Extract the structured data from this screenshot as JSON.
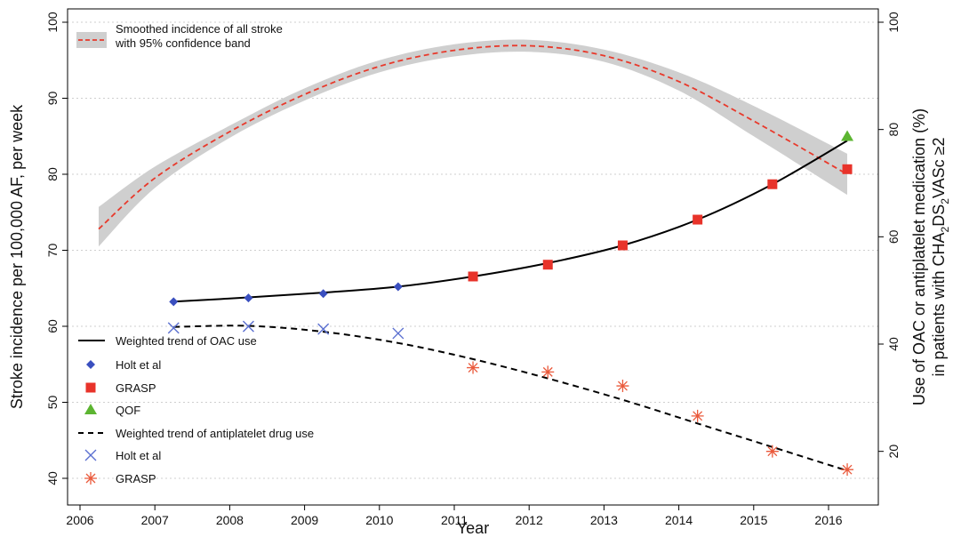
{
  "chart_data": {
    "type": "line",
    "xlabel": "Year",
    "ylabel": "Stroke incidence per 100,000 AF, per week",
    "y2label_line1": "Use of OAC or antiplatelet medication (%)",
    "y2label_line2_parts": [
      "in patients with CHA",
      "2",
      "DS",
      "2",
      "VASc ≥2"
    ],
    "xlim": [
      2006,
      2016.5
    ],
    "ylim": [
      40,
      100
    ],
    "y2lim": [
      10,
      100
    ],
    "xticks": [
      2006,
      2007,
      2008,
      2009,
      2010,
      2011,
      2012,
      2013,
      2014,
      2015,
      2016
    ],
    "yticks": [
      40,
      50,
      60,
      70,
      80,
      90,
      100
    ],
    "y2ticks": [
      20,
      40,
      60,
      80,
      100
    ],
    "grid": "horizontal dotted",
    "series": [
      {
        "name": "Smoothed incidence of all stroke with 95% confidence band",
        "kind": "smoothed-incidence",
        "axis": "left",
        "color": "#e8392b",
        "band_color": "#cfcfcf",
        "x": [
          2006.25,
          2007,
          2008,
          2009,
          2010,
          2011,
          2012,
          2013,
          2014,
          2015,
          2016.25
        ],
        "y": [
          72.8,
          79.5,
          85.6,
          90.5,
          94.2,
          96.3,
          96.9,
          95.6,
          92.2,
          87.0,
          80.0
        ],
        "y_lower": [
          70.5,
          78.2,
          84.8,
          89.7,
          93.4,
          95.5,
          96.1,
          94.8,
          91.0,
          85.0,
          77.3
        ],
        "y_upper": [
          75.7,
          81.0,
          86.4,
          91.3,
          95.0,
          97.1,
          97.7,
          96.4,
          93.4,
          89.0,
          82.7
        ]
      },
      {
        "name": "Weighted trend of OAC use",
        "kind": "oac-trend",
        "axis": "right",
        "color": "#000000",
        "x": [
          2007.25,
          2008.25,
          2009.25,
          2010.25,
          2011.25,
          2012.25,
          2013.25,
          2014.25,
          2015.25,
          2016.25
        ],
        "y": [
          47.9,
          48.7,
          49.6,
          50.7,
          52.6,
          55.1,
          58.4,
          63.2,
          69.8,
          77.9
        ]
      },
      {
        "name": "Holt et al",
        "kind": "oac-holt",
        "axis": "right",
        "marker": "diamond",
        "color": "#3a4fbf",
        "x": [
          2007.25,
          2008.25,
          2009.25,
          2010.25
        ],
        "y": [
          47.9,
          48.6,
          49.4,
          50.7
        ]
      },
      {
        "name": "GRASP",
        "kind": "oac-grasp",
        "axis": "right",
        "marker": "square",
        "color": "#e8332a",
        "x": [
          2011.25,
          2012.25,
          2013.25,
          2014.25,
          2015.25,
          2016.25
        ],
        "y": [
          52.6,
          54.8,
          58.4,
          63.2,
          69.8,
          72.6
        ]
      },
      {
        "name": "QOF",
        "kind": "oac-qof",
        "axis": "right",
        "marker": "triangle",
        "color": "#5cb531",
        "x": [
          2016.25
        ],
        "y": [
          78.7
        ]
      },
      {
        "name": "Weighted trend of antiplatelet drug use",
        "kind": "antiplatelet-trend",
        "axis": "right",
        "color": "#000000",
        "dash": "7,5",
        "x": [
          2007.25,
          2008.25,
          2009.25,
          2010.25,
          2011.25,
          2012.25,
          2013.25,
          2014.25,
          2015.25,
          2016.25
        ],
        "y": [
          43.2,
          43.4,
          42.3,
          40.2,
          37.2,
          33.6,
          29.6,
          25.2,
          20.8,
          16.4
        ]
      },
      {
        "name": "Holt et al",
        "kind": "antiplatelet-holt",
        "axis": "right",
        "marker": "x",
        "color": "#5a6fd0",
        "x": [
          2007.25,
          2008.25,
          2009.25,
          2010.25
        ],
        "y": [
          43.0,
          43.3,
          42.8,
          42.0
        ]
      },
      {
        "name": "GRASP",
        "kind": "antiplatelet-grasp",
        "axis": "right",
        "marker": "asterisk",
        "color": "#ea5a3c",
        "x": [
          2011.25,
          2012.25,
          2013.25,
          2014.25,
          2015.25,
          2016.25
        ],
        "y": [
          35.6,
          34.8,
          32.2,
          26.6,
          20.0,
          16.6
        ]
      }
    ],
    "legend_top": {
      "placement": "top-left",
      "line1": "Smoothed incidence of all stroke",
      "line2": "with 95% confidence band"
    },
    "legend_bottom": {
      "placement": "bottom-left",
      "entries": [
        {
          "label": "Weighted trend of OAC use",
          "symbol": "line",
          "color": "#000000"
        },
        {
          "label": "Holt et al",
          "symbol": "diamond",
          "color": "#3a4fbf"
        },
        {
          "label": "GRASP",
          "symbol": "square",
          "color": "#e8332a"
        },
        {
          "label": "QOF",
          "symbol": "triangle",
          "color": "#5cb531"
        },
        {
          "label": "Weighted trend of antiplatelet drug use",
          "symbol": "dashed",
          "color": "#000000"
        },
        {
          "label": "Holt et al",
          "symbol": "x",
          "color": "#5a6fd0"
        },
        {
          "label": "GRASP",
          "symbol": "asterisk",
          "color": "#ea5a3c"
        }
      ]
    }
  }
}
